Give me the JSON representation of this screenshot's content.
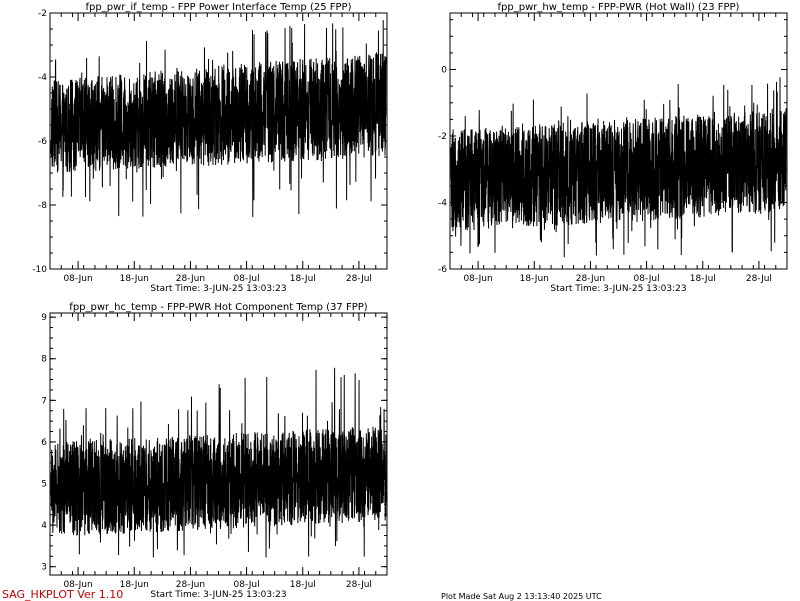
{
  "chart_data": [
    {
      "type": "line",
      "title": "fpp_pwr_if_temp - FPP Power Interface Temp (25 FPP)",
      "subtitle": "Start Time:  3-JUN-25  13:03:23",
      "x_ticks": [
        "08-Jun",
        "18-Jun",
        "28-Jun",
        "08-Jul",
        "18-Jul",
        "28-Jul"
      ],
      "y_ticks": [
        "-2",
        "-4",
        "-6",
        "-8",
        "-10"
      ],
      "ylim": [
        -10,
        -2
      ],
      "xlim": [
        "2025-06-03",
        "2025-08-02"
      ],
      "series": [
        {
          "base_start": -5.7,
          "base_end": -5.0,
          "low_start": -7.0,
          "low_end": -6.5,
          "high_start": -4.1,
          "high_end": -3.2,
          "spike_min": -8.4,
          "spike_max": -2.1
        }
      ]
    },
    {
      "type": "line",
      "title": "fpp_pwr_hw_temp - FPP-PWR (Hot Wall) (23 FPP)",
      "subtitle": "Start Time:  3-JUN-25  13:03:23",
      "x_ticks": [
        "08-Jun",
        "18-Jun",
        "28-Jun",
        "08-Jul",
        "18-Jul",
        "28-Jul"
      ],
      "y_ticks": [
        "0",
        "-2",
        "-4",
        "-6"
      ],
      "ylim": [
        -6,
        1.7
      ],
      "xlim": [
        "2025-06-03",
        "2025-08-02"
      ],
      "series": [
        {
          "base_start": -3.3,
          "base_end": -2.7,
          "low_start": -4.9,
          "low_end": -4.3,
          "high_start": -1.8,
          "high_end": -1.2,
          "spike_min": -5.7,
          "spike_max": -0.2
        }
      ]
    },
    {
      "type": "line",
      "title": "fpp_pwr_hc_temp - FPP-PWR Hot Component Temp (37 FPP)",
      "subtitle": "Start Time:  3-JUN-25  13:03:23",
      "x_ticks": [
        "08-Jun",
        "18-Jun",
        "28-Jun",
        "08-Jul",
        "18-Jul",
        "28-Jul"
      ],
      "y_ticks": [
        "9",
        "8",
        "7",
        "6",
        "5",
        "4",
        "3"
      ],
      "ylim": [
        2.8,
        9.1
      ],
      "xlim": [
        "2025-06-03",
        "2025-08-02"
      ],
      "series": [
        {
          "base_start": 4.8,
          "base_end": 5.2,
          "low_start": 3.7,
          "low_end": 4.1,
          "high_start": 6.0,
          "high_end": 6.4,
          "spike_min": 3.2,
          "spike_max": 8.0
        }
      ]
    }
  ],
  "footer": {
    "program": "SAG_HKPLOT  Ver 1.10",
    "plot_made": "Plot Made Sat Aug  2 13:13:40 2025 UTC"
  }
}
